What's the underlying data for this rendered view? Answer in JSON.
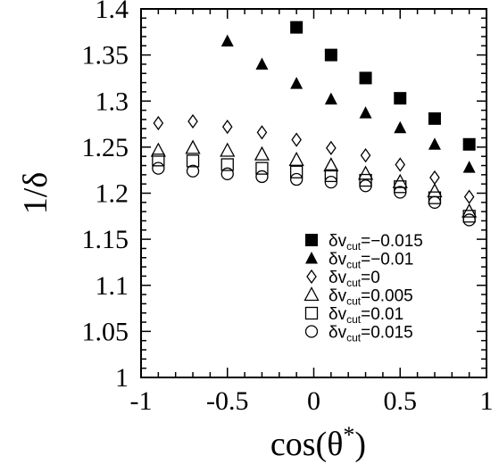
{
  "chart_data": {
    "type": "scatter",
    "xlabel": "cos(θ*)",
    "ylabel": "1/δ",
    "xlim": [
      -1,
      1
    ],
    "ylim": [
      1,
      1.4
    ],
    "xticks": [
      "-1",
      "-0.5",
      "0",
      "0.5",
      "1"
    ],
    "yticks": [
      "1",
      "1.05",
      "1.1",
      "1.15",
      "1.2",
      "1.25",
      "1.3",
      "1.35",
      "1.4"
    ],
    "legend_position": "bottom-right",
    "series": [
      {
        "name": "δv_cut=−0.015",
        "marker": "filled-square",
        "x": [
          -0.1,
          0.1,
          0.3,
          0.5,
          0.7,
          0.9
        ],
        "y": [
          1.38,
          1.35,
          1.325,
          1.303,
          1.281,
          1.253
        ]
      },
      {
        "name": "δv_cut=−0.01",
        "marker": "filled-triangle",
        "x": [
          -0.5,
          -0.3,
          -0.1,
          0.1,
          0.3,
          0.5,
          0.7,
          0.9
        ],
        "y": [
          1.365,
          1.34,
          1.319,
          1.302,
          1.287,
          1.271,
          1.253,
          1.228
        ]
      },
      {
        "name": "δv_cut=0",
        "marker": "open-diamond",
        "x": [
          -0.9,
          -0.7,
          -0.5,
          -0.3,
          -0.1,
          0.1,
          0.3,
          0.5,
          0.7,
          0.9
        ],
        "y": [
          1.276,
          1.278,
          1.272,
          1.266,
          1.258,
          1.249,
          1.241,
          1.231,
          1.217,
          1.196
        ]
      },
      {
        "name": "δv_cut=0.005",
        "marker": "open-triangle",
        "x": [
          -0.9,
          -0.7,
          -0.5,
          -0.3,
          -0.1,
          0.1,
          0.3,
          0.5,
          0.7,
          0.9
        ],
        "y": [
          1.246,
          1.249,
          1.246,
          1.242,
          1.236,
          1.23,
          1.221,
          1.212,
          1.202,
          1.18
        ]
      },
      {
        "name": "δv_cut=0.01",
        "marker": "open-square",
        "x": [
          -0.9,
          -0.7,
          -0.5,
          -0.3,
          -0.1,
          0.1,
          0.3,
          0.5,
          0.7,
          0.9
        ],
        "y": [
          1.236,
          1.235,
          1.231,
          1.227,
          1.223,
          1.219,
          1.214,
          1.207,
          1.195,
          1.175
        ]
      },
      {
        "name": "δv_cut=0.015",
        "marker": "open-circle",
        "x": [
          -0.9,
          -0.7,
          -0.5,
          -0.3,
          -0.1,
          0.1,
          0.3,
          0.5,
          0.7,
          0.9
        ],
        "y": [
          1.227,
          1.224,
          1.221,
          1.218,
          1.215,
          1.212,
          1.208,
          1.201,
          1.19,
          1.171
        ]
      }
    ],
    "legend": [
      {
        "symbol": "δv",
        "sub": "cut",
        "value": "=−0.015"
      },
      {
        "symbol": "δv",
        "sub": "cut",
        "value": "=−0.01"
      },
      {
        "symbol": "δv",
        "sub": "cut",
        "value": "=0"
      },
      {
        "symbol": "δv",
        "sub": "cut",
        "value": "=0.005"
      },
      {
        "symbol": "δv",
        "sub": "cut",
        "value": "=0.01"
      },
      {
        "symbol": "δv",
        "sub": "cut",
        "value": "=0.015"
      }
    ]
  }
}
